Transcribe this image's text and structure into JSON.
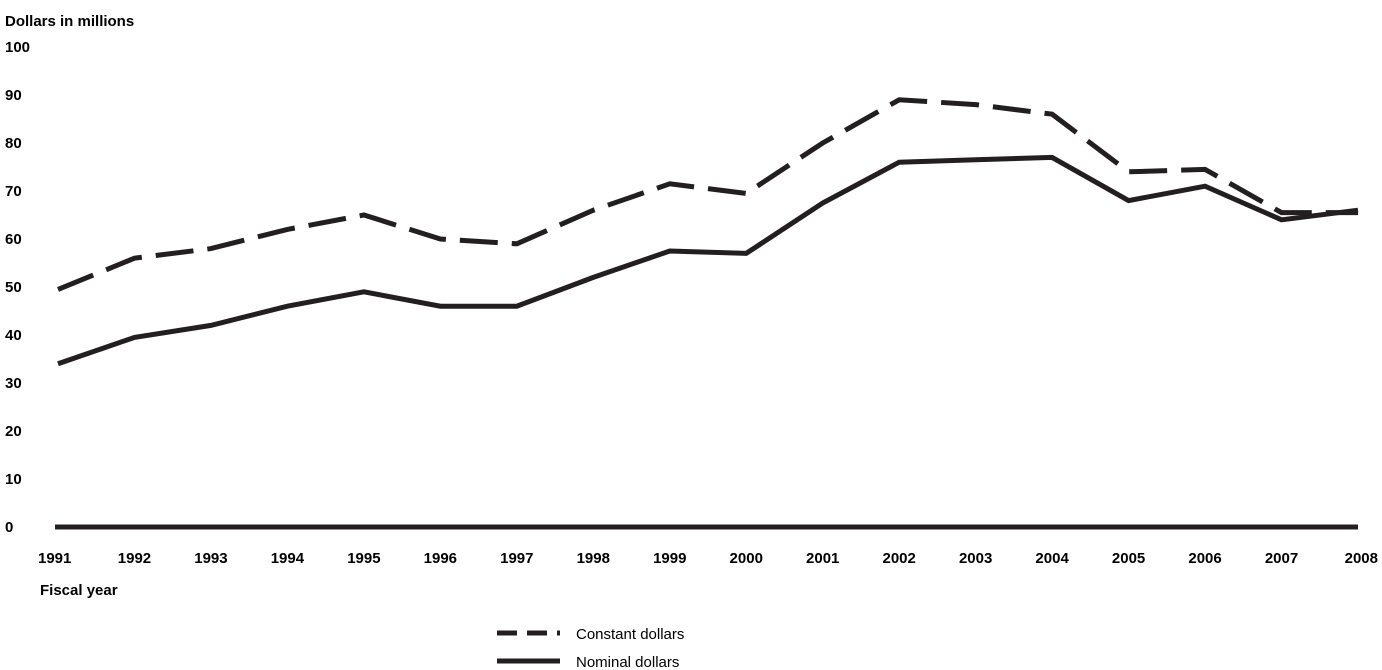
{
  "chart_data": {
    "type": "line",
    "ylabel": "Dollars in millions",
    "xlabel": "Fiscal year",
    "ylim": [
      0,
      100
    ],
    "yticks": [
      0,
      10,
      20,
      30,
      40,
      50,
      60,
      70,
      80,
      90,
      100
    ],
    "x": [
      1991,
      1992,
      1993,
      1994,
      1995,
      1996,
      1997,
      1998,
      1999,
      2000,
      2001,
      2002,
      2003,
      2004,
      2005,
      2006,
      2007,
      2008
    ],
    "series": [
      {
        "name": "Constant dollars",
        "style": "dashed",
        "values": [
          49.5,
          56,
          58,
          62,
          65,
          60,
          59,
          66,
          71.5,
          69.5,
          80,
          89,
          88,
          86,
          74,
          74.5,
          65.5,
          65.5
        ]
      },
      {
        "name": "Nominal dollars",
        "style": "solid",
        "values": [
          34,
          39.5,
          42,
          46,
          49,
          46,
          46,
          52,
          57.5,
          57,
          67.5,
          76,
          76.5,
          77,
          68,
          71,
          64,
          66
        ]
      }
    ],
    "grid": false,
    "legend": "bottom-center",
    "colors": {
      "line": "#231f20"
    }
  }
}
